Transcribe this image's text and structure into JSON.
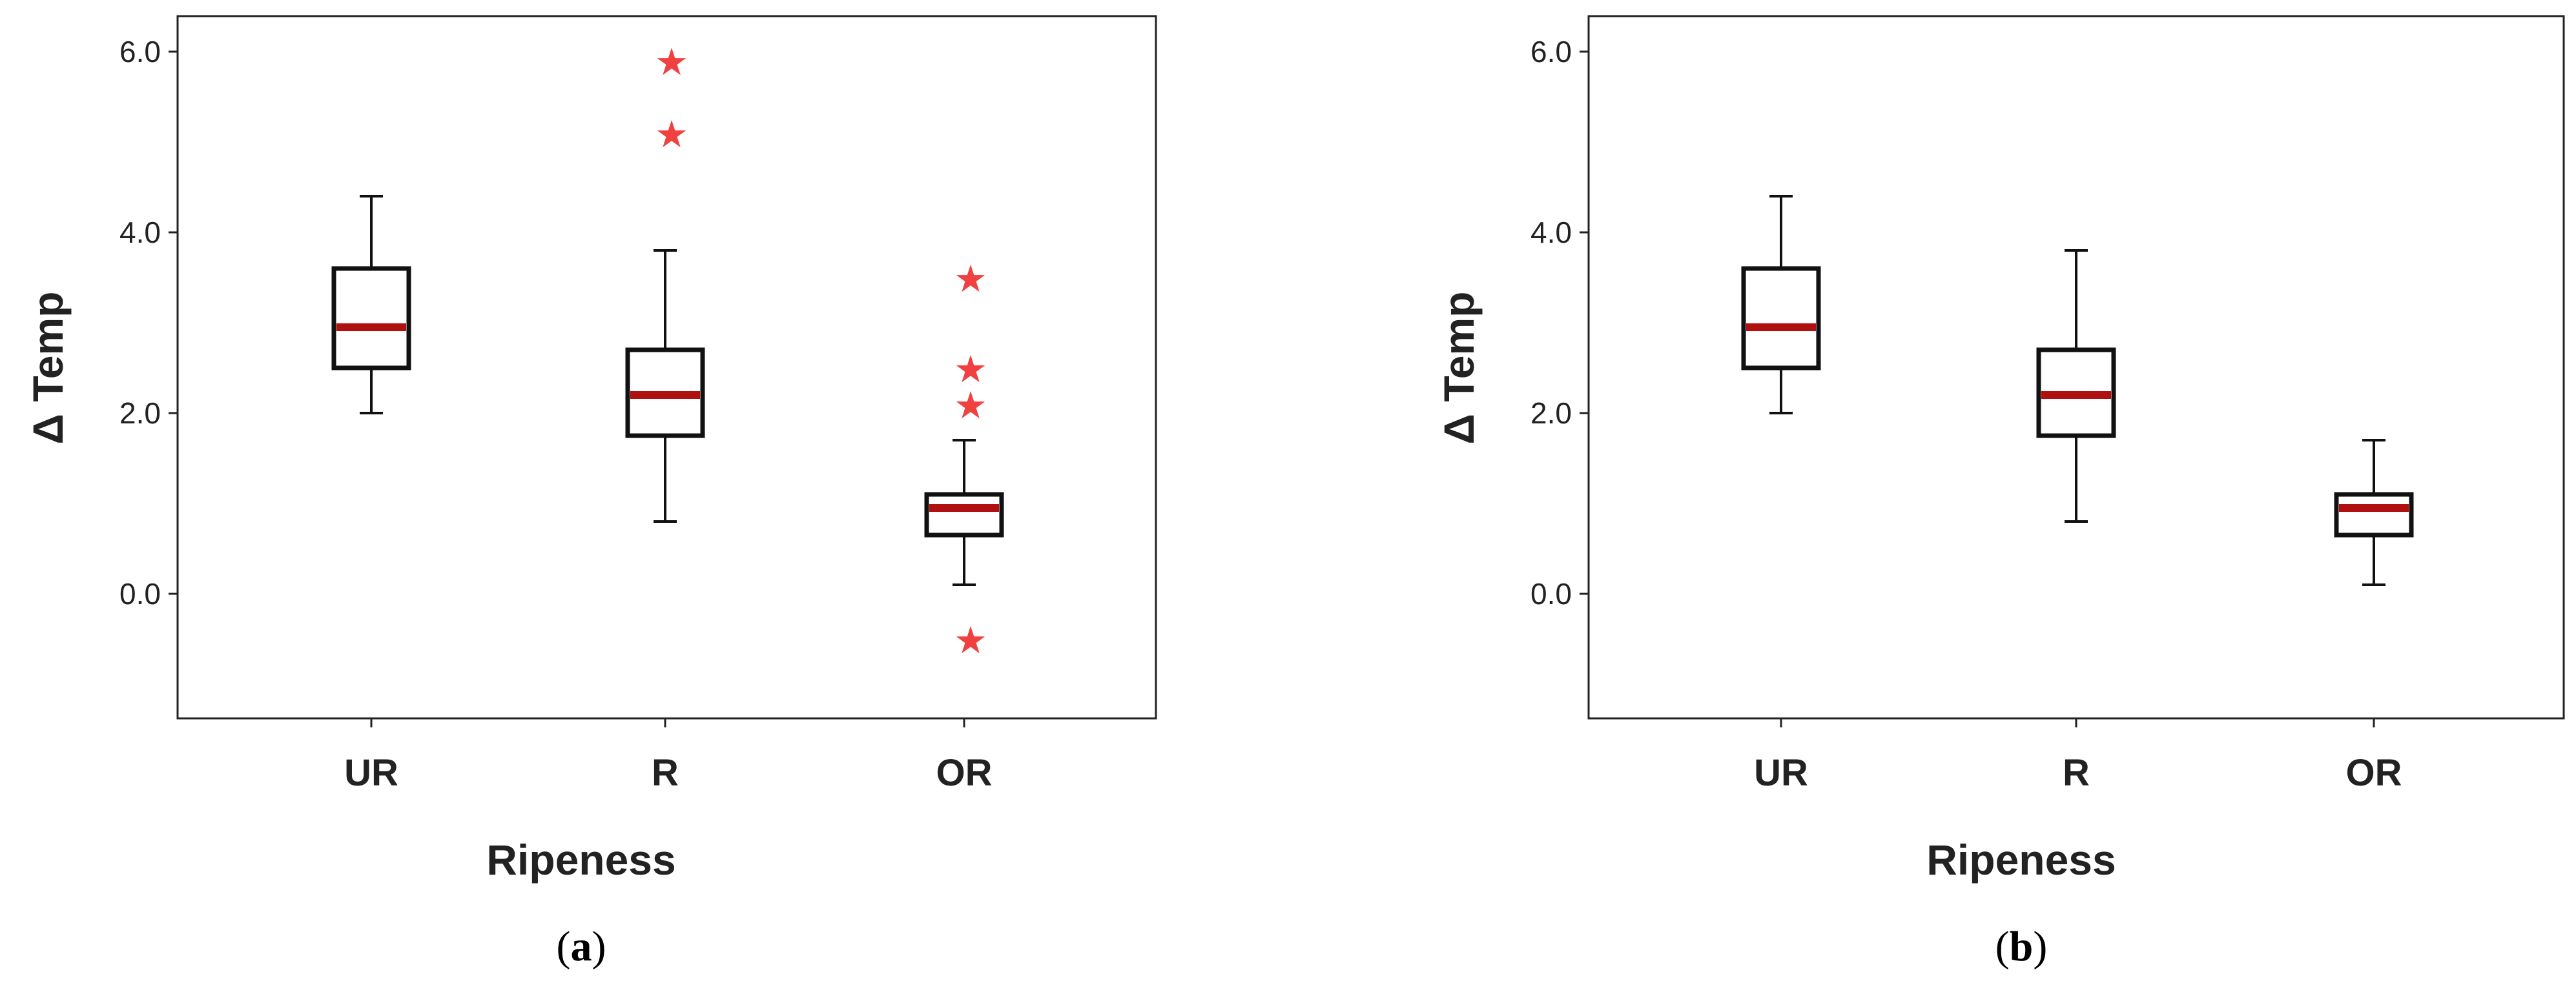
{
  "chart_data": [
    {
      "type": "box",
      "panel_label": "(a)",
      "xlabel": "Ripeness",
      "ylabel": "Δ Temp",
      "ylim": [
        -1.4,
        6.4
      ],
      "yticks": [
        "6.0",
        "4.0",
        "2.0",
        "0.0"
      ],
      "categories": [
        "UR",
        "R",
        "OR"
      ],
      "boxes": [
        {
          "category": "UR",
          "min": 2.0,
          "q1": 2.5,
          "median": 2.95,
          "q3": 3.6,
          "max": 4.4,
          "outliers": []
        },
        {
          "category": "R",
          "min": 0.8,
          "q1": 1.75,
          "median": 2.2,
          "q3": 2.7,
          "max": 3.8,
          "outliers": [
            5.1,
            5.9
          ]
        },
        {
          "category": "OR",
          "min": 0.1,
          "q1": 0.65,
          "median": 0.95,
          "q3": 1.1,
          "max": 1.7,
          "outliers": [
            -0.5,
            2.1,
            2.5,
            3.5
          ]
        }
      ],
      "median_color": "#b01010",
      "outlier_color": "#f04040",
      "outlier_marker": "★"
    },
    {
      "type": "box",
      "panel_label": "(b)",
      "xlabel": "Ripeness",
      "ylabel": "Δ Temp",
      "ylim": [
        -1.4,
        6.4
      ],
      "yticks": [
        "6.0",
        "4.0",
        "2.0",
        "0.0"
      ],
      "categories": [
        "UR",
        "R",
        "OR"
      ],
      "boxes": [
        {
          "category": "UR",
          "min": 2.0,
          "q1": 2.5,
          "median": 2.95,
          "q3": 3.6,
          "max": 4.4,
          "outliers": []
        },
        {
          "category": "R",
          "min": 0.8,
          "q1": 1.75,
          "median": 2.2,
          "q3": 2.7,
          "max": 3.8,
          "outliers": []
        },
        {
          "category": "OR",
          "min": 0.1,
          "q1": 0.65,
          "median": 0.95,
          "q3": 1.1,
          "max": 1.7,
          "outliers": []
        }
      ],
      "median_color": "#b01010",
      "outlier_color": "#f04040",
      "outlier_marker": "★"
    }
  ]
}
